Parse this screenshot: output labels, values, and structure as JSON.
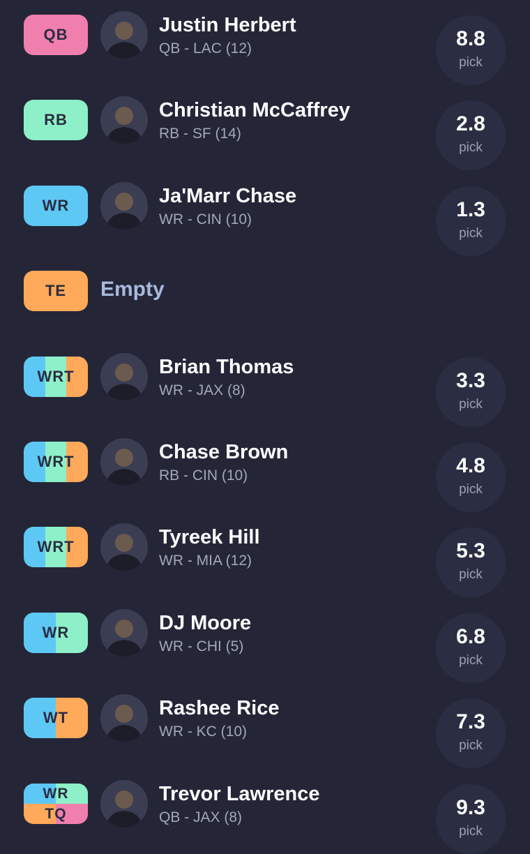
{
  "rows": [
    {
      "slot_lines": [
        "QB"
      ],
      "slot_colors": [
        [
          "#f07fae"
        ]
      ],
      "name": "Justin Herbert",
      "info": "QB - LAC (12)",
      "pick": "8.8",
      "pick_label": "pick"
    },
    {
      "slot_lines": [
        "RB"
      ],
      "slot_colors": [
        [
          "#8ef0c8"
        ]
      ],
      "name": "Christian McCaffrey",
      "info": "RB - SF (14)",
      "pick": "2.8",
      "pick_label": "pick"
    },
    {
      "slot_lines": [
        "WR"
      ],
      "slot_colors": [
        [
          "#5ec8f5"
        ]
      ],
      "name": "Ja'Marr Chase",
      "info": "WR - CIN (10)",
      "pick": "1.3",
      "pick_label": "pick"
    },
    {
      "slot_lines": [
        "TE"
      ],
      "slot_colors": [
        [
          "#ffa95a"
        ]
      ],
      "name": "Empty"
    },
    {
      "slot_lines": [
        "WRT"
      ],
      "slot_colors": [
        [
          "#5ec8f5",
          "#8ef0c8",
          "#ffa95a"
        ]
      ],
      "name": "Brian Thomas",
      "info": "WR - JAX (8)",
      "pick": "3.3",
      "pick_label": "pick"
    },
    {
      "slot_lines": [
        "WRT"
      ],
      "slot_colors": [
        [
          "#5ec8f5",
          "#8ef0c8",
          "#ffa95a"
        ]
      ],
      "name": "Chase Brown",
      "info": "RB - CIN (10)",
      "pick": "4.8",
      "pick_label": "pick"
    },
    {
      "slot_lines": [
        "WRT"
      ],
      "slot_colors": [
        [
          "#5ec8f5",
          "#8ef0c8",
          "#ffa95a"
        ]
      ],
      "name": "Tyreek Hill",
      "info": "WR - MIA (12)",
      "pick": "5.3",
      "pick_label": "pick"
    },
    {
      "slot_lines": [
        "WR"
      ],
      "slot_colors": [
        [
          "#5ec8f5",
          "#8ef0c8"
        ]
      ],
      "name": "DJ Moore",
      "info": "WR - CHI (5)",
      "pick": "6.8",
      "pick_label": "pick"
    },
    {
      "slot_lines": [
        "WT"
      ],
      "slot_colors": [
        [
          "#5ec8f5",
          "#ffa95a"
        ]
      ],
      "name": "Rashee Rice",
      "info": "WR - KC (10)",
      "pick": "7.3",
      "pick_label": "pick"
    },
    {
      "slot_lines": [
        "WR",
        "TQ"
      ],
      "slot_colors": [
        [
          "#5ec8f5",
          "#8ef0c8"
        ],
        [
          "#ffa95a",
          "#f07fae"
        ]
      ],
      "name": "Trevor Lawrence",
      "info": "QB - JAX (8)",
      "pick": "9.3",
      "pick_label": "pick"
    }
  ]
}
